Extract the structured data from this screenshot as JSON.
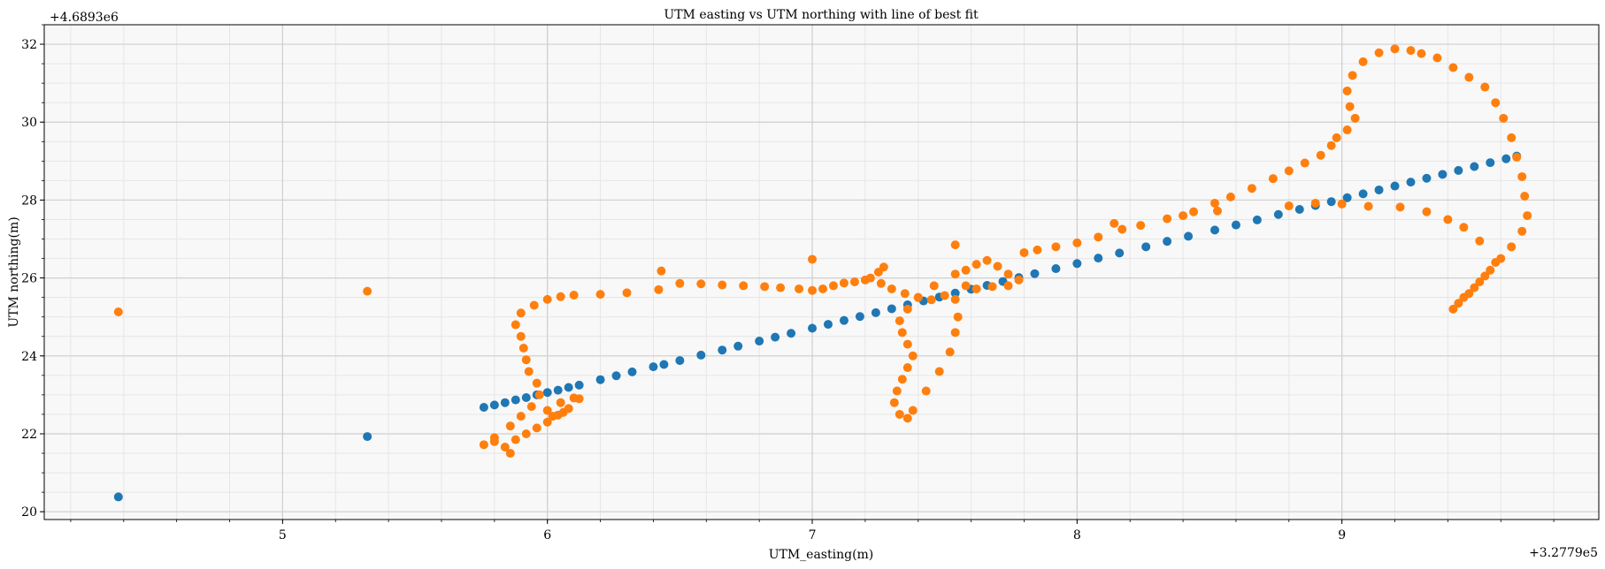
{
  "chart_data": {
    "type": "scatter",
    "title": "UTM easting vs UTM northing with line of best fit",
    "xlabel": "UTM_easting(m)",
    "ylabel": "UTM northing(m)",
    "x_offset_label": "+3.2779e5",
    "y_offset_label": "+4.6893e6",
    "xlim": [
      4.1,
      9.97
    ],
    "ylim": [
      19.8,
      32.5
    ],
    "x_ticks": [
      5,
      6,
      7,
      8,
      9
    ],
    "y_ticks": [
      20,
      22,
      24,
      26,
      28,
      30,
      32
    ],
    "grid": true,
    "legend": "none",
    "colors": {
      "fit": "#1f77b4",
      "data": "#ff7f0e",
      "plot_bg": "#f8f8f8"
    },
    "series": [
      {
        "role": "line of best fit",
        "color": "#1f77b4",
        "points": [
          [
            4.38,
            20.38
          ],
          [
            5.32,
            21.93
          ],
          [
            5.76,
            22.68
          ],
          [
            5.8,
            22.74
          ],
          [
            5.84,
            22.8
          ],
          [
            5.88,
            22.87
          ],
          [
            5.92,
            22.93
          ],
          [
            5.96,
            23.0
          ],
          [
            6.0,
            23.06
          ],
          [
            6.04,
            23.12
          ],
          [
            6.08,
            23.19
          ],
          [
            6.12,
            23.25
          ],
          [
            6.2,
            23.39
          ],
          [
            6.26,
            23.49
          ],
          [
            6.32,
            23.59
          ],
          [
            6.4,
            23.72
          ],
          [
            6.44,
            23.78
          ],
          [
            6.5,
            23.88
          ],
          [
            6.58,
            24.02
          ],
          [
            6.66,
            24.15
          ],
          [
            6.72,
            24.25
          ],
          [
            6.8,
            24.38
          ],
          [
            6.86,
            24.48
          ],
          [
            6.92,
            24.58
          ],
          [
            7.0,
            24.71
          ],
          [
            7.06,
            24.81
          ],
          [
            7.12,
            24.91
          ],
          [
            7.18,
            25.01
          ],
          [
            7.24,
            25.11
          ],
          [
            7.3,
            25.21
          ],
          [
            7.36,
            25.31
          ],
          [
            7.42,
            25.41
          ],
          [
            7.48,
            25.51
          ],
          [
            7.54,
            25.61
          ],
          [
            7.6,
            25.71
          ],
          [
            7.66,
            25.81
          ],
          [
            7.72,
            25.91
          ],
          [
            7.78,
            26.01
          ],
          [
            7.84,
            26.11
          ],
          [
            7.92,
            26.24
          ],
          [
            8.0,
            26.37
          ],
          [
            8.08,
            26.51
          ],
          [
            8.16,
            26.64
          ],
          [
            8.26,
            26.8
          ],
          [
            8.34,
            26.94
          ],
          [
            8.42,
            27.07
          ],
          [
            8.52,
            27.23
          ],
          [
            8.6,
            27.36
          ],
          [
            8.68,
            27.49
          ],
          [
            8.76,
            27.63
          ],
          [
            8.84,
            27.76
          ],
          [
            8.9,
            27.86
          ],
          [
            8.96,
            27.96
          ],
          [
            9.02,
            28.06
          ],
          [
            9.08,
            28.16
          ],
          [
            9.14,
            28.26
          ],
          [
            9.2,
            28.36
          ],
          [
            9.26,
            28.46
          ],
          [
            9.32,
            28.56
          ],
          [
            9.38,
            28.66
          ],
          [
            9.44,
            28.76
          ],
          [
            9.5,
            28.86
          ],
          [
            9.56,
            28.96
          ],
          [
            9.62,
            29.06
          ],
          [
            9.66,
            29.13
          ]
        ]
      },
      {
        "role": "data",
        "color": "#ff7f0e",
        "points": [
          [
            4.38,
            25.13
          ],
          [
            5.32,
            25.66
          ],
          [
            5.76,
            21.72
          ],
          [
            5.8,
            21.8
          ],
          [
            5.84,
            21.66
          ],
          [
            5.86,
            21.5
          ],
          [
            5.8,
            21.9
          ],
          [
            5.86,
            22.2
          ],
          [
            5.9,
            22.45
          ],
          [
            5.94,
            22.7
          ],
          [
            5.97,
            23.0
          ],
          [
            5.96,
            23.3
          ],
          [
            5.93,
            23.6
          ],
          [
            5.92,
            23.9
          ],
          [
            5.91,
            24.2
          ],
          [
            5.9,
            24.5
          ],
          [
            5.88,
            24.8
          ],
          [
            5.9,
            25.1
          ],
          [
            5.95,
            25.3
          ],
          [
            6.0,
            25.45
          ],
          [
            6.05,
            25.52
          ],
          [
            6.1,
            25.56
          ],
          [
            6.2,
            25.58
          ],
          [
            6.3,
            25.62
          ],
          [
            6.42,
            25.7
          ],
          [
            6.43,
            26.18
          ],
          [
            6.5,
            25.86
          ],
          [
            6.58,
            25.85
          ],
          [
            6.66,
            25.82
          ],
          [
            6.74,
            25.8
          ],
          [
            6.82,
            25.78
          ],
          [
            6.88,
            25.75
          ],
          [
            6.95,
            25.72
          ],
          [
            7.0,
            25.68
          ],
          [
            7.04,
            25.72
          ],
          [
            7.08,
            25.8
          ],
          [
            7.12,
            25.87
          ],
          [
            7.16,
            25.9
          ],
          [
            7.2,
            25.95
          ],
          [
            7.22,
            26.0
          ],
          [
            7.25,
            26.15
          ],
          [
            7.27,
            26.28
          ],
          [
            7.0,
            26.48
          ],
          [
            7.26,
            25.86
          ],
          [
            7.3,
            25.72
          ],
          [
            7.35,
            25.6
          ],
          [
            7.4,
            25.5
          ],
          [
            7.45,
            25.44
          ],
          [
            7.5,
            25.55
          ],
          [
            7.54,
            25.45
          ],
          [
            7.55,
            25.0
          ],
          [
            7.54,
            24.6
          ],
          [
            7.52,
            24.1
          ],
          [
            7.48,
            23.6
          ],
          [
            7.43,
            23.1
          ],
          [
            7.38,
            22.6
          ],
          [
            7.36,
            22.4
          ],
          [
            7.33,
            22.5
          ],
          [
            7.31,
            22.8
          ],
          [
            7.32,
            23.1
          ],
          [
            7.34,
            23.4
          ],
          [
            7.36,
            23.7
          ],
          [
            7.38,
            24.0
          ],
          [
            7.36,
            24.3
          ],
          [
            7.34,
            24.6
          ],
          [
            7.33,
            24.9
          ],
          [
            7.36,
            25.2
          ],
          [
            7.4,
            25.5
          ],
          [
            7.46,
            25.8
          ],
          [
            7.54,
            26.1
          ],
          [
            7.58,
            26.2
          ],
          [
            7.62,
            26.35
          ],
          [
            7.66,
            26.45
          ],
          [
            7.7,
            26.3
          ],
          [
            7.74,
            26.1
          ],
          [
            7.78,
            25.95
          ],
          [
            7.74,
            25.8
          ],
          [
            7.68,
            25.78
          ],
          [
            7.62,
            25.72
          ],
          [
            7.58,
            25.8
          ],
          [
            7.54,
            26.85
          ],
          [
            7.8,
            26.65
          ],
          [
            7.85,
            26.72
          ],
          [
            7.92,
            26.8
          ],
          [
            8.0,
            26.9
          ],
          [
            8.08,
            27.05
          ],
          [
            8.14,
            27.4
          ],
          [
            8.17,
            27.25
          ],
          [
            8.24,
            27.35
          ],
          [
            8.34,
            27.52
          ],
          [
            8.4,
            27.6
          ],
          [
            8.44,
            27.7
          ],
          [
            8.52,
            27.92
          ],
          [
            8.53,
            27.72
          ],
          [
            8.58,
            28.08
          ],
          [
            8.66,
            28.3
          ],
          [
            8.74,
            28.55
          ],
          [
            8.8,
            28.75
          ],
          [
            8.86,
            28.95
          ],
          [
            8.92,
            29.15
          ],
          [
            8.96,
            29.4
          ],
          [
            8.98,
            29.6
          ],
          [
            9.02,
            29.8
          ],
          [
            9.05,
            30.1
          ],
          [
            9.03,
            30.4
          ],
          [
            9.02,
            30.8
          ],
          [
            9.04,
            31.2
          ],
          [
            9.08,
            31.55
          ],
          [
            9.14,
            31.78
          ],
          [
            9.2,
            31.88
          ],
          [
            9.26,
            31.84
          ],
          [
            9.3,
            31.76
          ],
          [
            9.36,
            31.65
          ],
          [
            9.42,
            31.4
          ],
          [
            9.48,
            31.15
          ],
          [
            9.54,
            30.9
          ],
          [
            9.58,
            30.5
          ],
          [
            9.61,
            30.1
          ],
          [
            9.64,
            29.6
          ],
          [
            9.66,
            29.1
          ],
          [
            9.68,
            28.6
          ],
          [
            9.69,
            28.1
          ],
          [
            9.7,
            27.6
          ],
          [
            9.68,
            27.2
          ],
          [
            9.64,
            26.8
          ],
          [
            9.6,
            26.5
          ],
          [
            9.56,
            26.2
          ],
          [
            9.52,
            25.9
          ],
          [
            9.48,
            25.6
          ],
          [
            9.44,
            25.35
          ],
          [
            9.42,
            25.2
          ],
          [
            9.46,
            25.5
          ],
          [
            9.5,
            25.75
          ],
          [
            9.54,
            26.05
          ],
          [
            9.58,
            26.4
          ],
          [
            9.52,
            26.95
          ],
          [
            9.46,
            27.3
          ],
          [
            9.4,
            27.5
          ],
          [
            9.32,
            27.7
          ],
          [
            9.22,
            27.82
          ],
          [
            9.1,
            27.84
          ],
          [
            9.0,
            27.9
          ],
          [
            8.9,
            27.92
          ],
          [
            8.8,
            27.85
          ],
          [
            6.12,
            22.9
          ],
          [
            6.08,
            22.65
          ],
          [
            6.04,
            22.48
          ],
          [
            6.0,
            22.3
          ],
          [
            5.96,
            22.15
          ],
          [
            5.92,
            22.0
          ],
          [
            5.88,
            21.85
          ],
          [
            6.0,
            22.6
          ],
          [
            6.05,
            22.8
          ],
          [
            6.1,
            22.92
          ],
          [
            6.06,
            22.55
          ],
          [
            6.02,
            22.45
          ]
        ]
      }
    ]
  }
}
